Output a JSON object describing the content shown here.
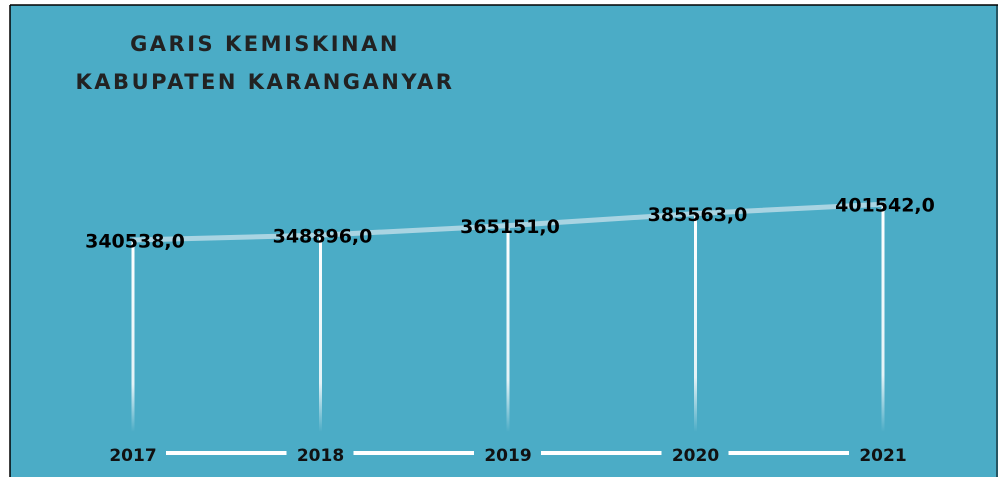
{
  "chart_data": {
    "type": "line",
    "title_lines": [
      "GARIS KEMISKINAN",
      "KABUPATEN KARANGANYAR"
    ],
    "categories": [
      "2017",
      "2018",
      "2019",
      "2020",
      "2021"
    ],
    "values": [
      340538,
      348896,
      365151,
      385563,
      401542
    ],
    "value_labels": [
      "340538,0",
      "348896,0",
      "365151,0",
      "385563,0",
      "401542,0"
    ],
    "color": "#a9d4e2",
    "ylim": [
      0,
      700000
    ]
  }
}
